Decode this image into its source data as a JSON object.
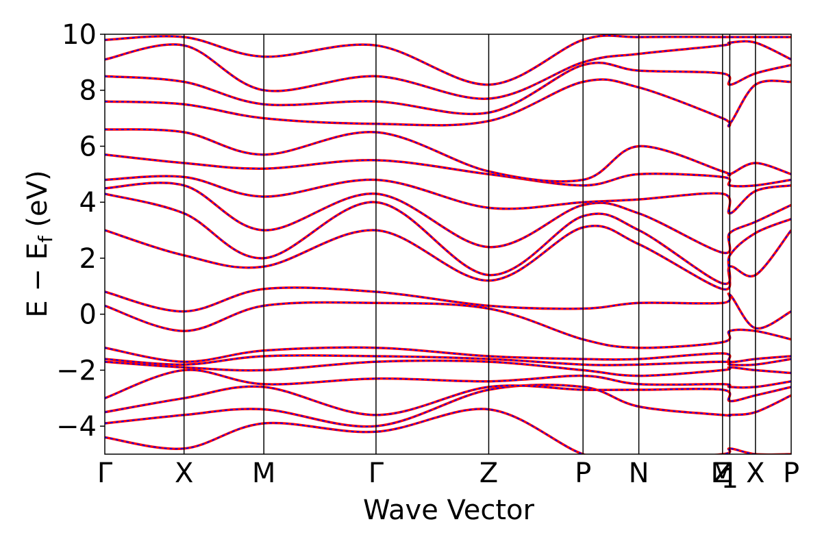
{
  "chart_data": {
    "type": "line",
    "xlabel": "Wave Vector",
    "ylabel": "E − E_f (eV)",
    "ylabel_main": "E − E",
    "ylabel_sub": "f",
    "ylabel_tail": " (eV)",
    "ylim": [
      -5,
      10
    ],
    "yticks": [
      -4,
      -2,
      0,
      2,
      4,
      6,
      8,
      10
    ],
    "ytick_labels": [
      "−4",
      "−2",
      "0",
      "2",
      "4",
      "6",
      "8",
      "10"
    ],
    "xlim": [
      0,
      12.3
    ],
    "kpoints": [
      {
        "label": "Γ",
        "x": 0
      },
      {
        "label": "X",
        "x": 1.42
      },
      {
        "label": "M",
        "x": 2.85
      },
      {
        "label": "Γ",
        "x": 4.86
      },
      {
        "label": "Z",
        "x": 6.88
      },
      {
        "label": "P",
        "x": 8.57
      },
      {
        "label": "N",
        "x": 9.57
      },
      {
        "label": "Z",
        "x": 11.07
      },
      {
        "label": "M",
        "x": 11.07
      },
      {
        "label": "1",
        "x": 11.2
      },
      {
        "label": "X",
        "x": 11.66
      },
      {
        "label": "P",
        "x": 12.3
      }
    ],
    "grid": false,
    "line_colors": {
      "series_a": "#ff0000",
      "series_b": "#0000ff"
    },
    "bands": [
      {
        "x": [
          0,
          1.42,
          2.85,
          4.86,
          6.88,
          8.57,
          9.57,
          11.07,
          11.2,
          11.66,
          12.3
        ],
        "y": [
          -4.4,
          -4.8,
          -3.9,
          -4.2,
          -3.4,
          -5.0,
          -5.2,
          -5.0,
          -4.8,
          -5.0,
          -5.0
        ]
      },
      {
        "x": [
          0,
          1.42,
          2.85,
          4.86,
          6.88,
          8.57,
          9.57,
          11.07,
          11.2,
          11.66,
          12.3
        ],
        "y": [
          -3.9,
          -3.6,
          -3.4,
          -4.0,
          -2.7,
          -2.6,
          -3.3,
          -3.6,
          -3.6,
          -3.5,
          -2.9
        ]
      },
      {
        "x": [
          0,
          1.42,
          2.85,
          4.86,
          6.88,
          8.57,
          9.57,
          11.07,
          11.2,
          11.66,
          12.3
        ],
        "y": [
          -3.5,
          -3.0,
          -2.6,
          -3.6,
          -2.6,
          -2.7,
          -2.7,
          -2.7,
          -3.1,
          -2.9,
          -2.6
        ]
      },
      {
        "x": [
          0,
          1.42,
          2.85,
          4.86,
          6.88,
          8.57,
          9.57,
          11.07,
          11.2,
          11.66,
          12.3
        ],
        "y": [
          -3.0,
          -2.0,
          -2.5,
          -2.3,
          -2.4,
          -2.2,
          -2.5,
          -2.5,
          -2.6,
          -2.6,
          -2.4
        ]
      },
      {
        "x": [
          0,
          1.42,
          2.85,
          4.86,
          6.88,
          8.57,
          9.57,
          11.07,
          11.2,
          11.66,
          12.3
        ],
        "y": [
          -1.7,
          -1.9,
          -2.0,
          -1.7,
          -1.7,
          -2.0,
          -2.2,
          -2.0,
          -1.9,
          -2.0,
          -2.1
        ]
      },
      {
        "x": [
          0,
          1.42,
          2.85,
          4.86,
          6.88,
          8.57,
          9.57,
          11.07,
          11.2,
          11.66,
          12.3
        ],
        "y": [
          -1.6,
          -1.8,
          -1.5,
          -1.5,
          -1.6,
          -1.8,
          -1.8,
          -1.7,
          -1.8,
          -1.8,
          -1.6
        ]
      },
      {
        "x": [
          0,
          1.42,
          2.85,
          4.86,
          6.88,
          8.57,
          9.57,
          11.07,
          11.2,
          11.66,
          12.3
        ],
        "y": [
          -1.2,
          -1.7,
          -1.3,
          -1.2,
          -1.5,
          -1.6,
          -1.6,
          -1.4,
          -1.7,
          -1.6,
          -1.5
        ]
      },
      {
        "x": [
          0,
          1.42,
          2.85,
          4.86,
          6.88,
          8.57,
          9.57,
          11.07,
          11.2,
          11.66,
          12.3
        ],
        "y": [
          0.3,
          -0.6,
          0.3,
          0.4,
          0.2,
          -0.9,
          -1.2,
          -1.0,
          -0.6,
          -0.6,
          -0.9
        ]
      },
      {
        "x": [
          0,
          1.42,
          2.85,
          4.86,
          6.88,
          8.57,
          9.57,
          11.07,
          11.2,
          11.66,
          12.3
        ],
        "y": [
          0.8,
          0.1,
          0.9,
          0.8,
          0.3,
          0.2,
          0.4,
          0.4,
          0.7,
          -0.5,
          0.1
        ]
      },
      {
        "x": [
          0,
          1.42,
          2.85,
          4.86,
          6.88,
          8.57,
          9.57,
          11.07,
          11.2,
          11.66,
          12.3
        ],
        "y": [
          3.0,
          2.1,
          1.7,
          3.0,
          1.2,
          3.1,
          2.5,
          0.9,
          1.7,
          1.4,
          3.0
        ]
      },
      {
        "x": [
          0,
          1.42,
          2.85,
          4.86,
          6.88,
          8.57,
          9.57,
          11.07,
          11.2,
          11.66,
          12.3
        ],
        "y": [
          4.3,
          3.6,
          2.0,
          4.0,
          1.4,
          3.5,
          3.0,
          1.1,
          2.1,
          2.9,
          3.4
        ]
      },
      {
        "x": [
          0,
          1.42,
          2.85,
          4.86,
          6.88,
          8.57,
          9.57,
          11.07,
          11.2,
          11.66,
          12.3
        ],
        "y": [
          4.5,
          4.6,
          3.0,
          4.3,
          2.4,
          3.9,
          3.6,
          2.2,
          2.9,
          3.3,
          3.9
        ]
      },
      {
        "x": [
          0,
          1.42,
          2.85,
          4.86,
          6.88,
          8.57,
          9.57,
          11.07,
          11.2,
          11.66,
          12.3
        ],
        "y": [
          4.8,
          4.9,
          4.2,
          4.8,
          3.8,
          4.0,
          4.1,
          4.3,
          3.6,
          4.4,
          4.6
        ]
      },
      {
        "x": [
          0,
          1.42,
          2.85,
          4.86,
          6.88,
          8.57,
          9.57,
          11.07,
          11.2,
          11.66,
          12.3
        ],
        "y": [
          5.7,
          5.4,
          5.2,
          5.5,
          5.0,
          4.6,
          5.0,
          4.9,
          4.6,
          4.6,
          4.8
        ]
      },
      {
        "x": [
          0,
          1.42,
          2.85,
          4.86,
          6.88,
          8.57,
          9.57,
          11.07,
          11.2,
          11.66,
          12.3
        ],
        "y": [
          6.6,
          6.5,
          5.7,
          6.5,
          5.1,
          4.8,
          6.0,
          5.1,
          5.0,
          5.4,
          5.0
        ]
      },
      {
        "x": [
          0,
          1.42,
          2.85,
          4.86,
          6.88,
          8.57,
          9.57,
          11.07,
          11.2,
          11.66,
          12.3
        ],
        "y": [
          7.6,
          7.5,
          7.0,
          6.8,
          6.9,
          8.3,
          8.1,
          7.0,
          6.8,
          8.2,
          8.3
        ]
      },
      {
        "x": [
          0,
          1.42,
          2.85,
          4.86,
          6.88,
          8.57,
          9.57,
          11.07,
          11.2,
          11.66,
          12.3
        ],
        "y": [
          8.5,
          8.3,
          7.5,
          7.6,
          7.2,
          8.9,
          8.7,
          8.6,
          8.2,
          8.6,
          8.9
        ]
      },
      {
        "x": [
          0,
          1.42,
          2.85,
          4.86,
          6.88,
          8.57,
          9.57,
          11.07,
          11.2,
          11.66,
          12.3
        ],
        "y": [
          9.1,
          9.6,
          8.0,
          8.5,
          7.7,
          9.0,
          9.3,
          9.6,
          9.7,
          9.7,
          9.1
        ]
      },
      {
        "x": [
          0,
          1.42,
          2.85,
          4.86,
          6.88,
          8.57,
          9.57,
          11.07,
          11.2,
          11.66,
          12.3
        ],
        "y": [
          9.8,
          9.9,
          9.2,
          9.6,
          8.2,
          9.8,
          9.9,
          9.9,
          9.9,
          9.9,
          9.9
        ]
      }
    ]
  }
}
